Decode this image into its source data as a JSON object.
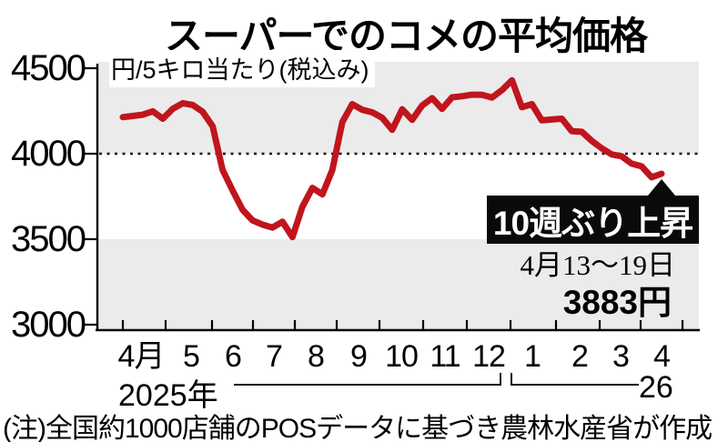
{
  "title": "スーパーでのコメの平均価格",
  "chart_data": {
    "type": "line",
    "title": "スーパーでのコメの平均価格",
    "unit_label": "円/5キロ当たり(税込み)",
    "ylabel": "円",
    "ylim": [
      3000,
      4600
    ],
    "y_ticks": [
      4500,
      4000,
      3500,
      3000
    ],
    "dotted_gridline_at": 4000,
    "grid": "dotted line at 4000 only, alternating gray bands 4000-4500 and 3000-3500",
    "legend": false,
    "x_month_labels": [
      "4月",
      "5",
      "6",
      "7",
      "8",
      "9",
      "10",
      "11",
      "12",
      "1",
      "2",
      "3",
      "4"
    ],
    "x_unit": "week (weekly average, April 2025 - April 2026)",
    "year_left": "2025年",
    "year_right": "26",
    "series": [
      {
        "name": "コメ平均価格",
        "values": [
          4214,
          4221,
          4228,
          4248,
          4205,
          4262,
          4295,
          4285,
          4245,
          4160,
          3905,
          3785,
          3672,
          3610,
          3585,
          3568,
          3602,
          3512,
          3690,
          3800,
          3762,
          3905,
          4185,
          4290,
          4257,
          4242,
          4210,
          4140,
          4260,
          4198,
          4282,
          4325,
          4262,
          4330,
          4336,
          4345,
          4344,
          4328,
          4372,
          4430,
          4272,
          4290,
          4195,
          4200,
          4205,
          4132,
          4128,
          4075,
          4032,
          3996,
          3985,
          3942,
          3926,
          3862,
          3883
        ]
      }
    ],
    "final_point_value": 3883,
    "line_color": "#c0151d",
    "band_color": "#ebebeb",
    "annotation_box_color": "#0a0a0a"
  },
  "annotation": {
    "headline": "10週ぶり上昇",
    "date_range": "4月13〜19日",
    "price": "3883円"
  },
  "note": "(注)全国約1000店舗のPOSデータに基づき農林水産省が作成"
}
